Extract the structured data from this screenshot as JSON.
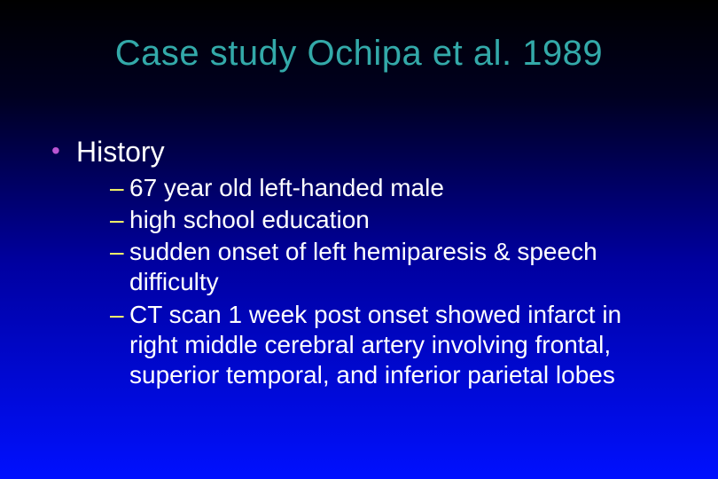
{
  "slide": {
    "title": "Case study Ochipa et al. 1989",
    "title_color": "#33a9a9",
    "title_fontsize": 40,
    "background_gradient": [
      "#000000",
      "#000020",
      "#0000a0",
      "#0010ff"
    ],
    "bullet_level1_color": "#ba55d3",
    "bullet_level2_color": "#ffff66",
    "body_text_color": "#ffffff",
    "level1_fontsize": 32,
    "level2_fontsize": 28,
    "font_family": "Arial",
    "items": [
      {
        "label": "History",
        "subitems": [
          "67 year old left-handed male",
          "high school education",
          "sudden onset of left hemiparesis & speech difficulty",
          "CT scan 1 week post onset showed infarct in right middle cerebral artery involving frontal, superior temporal, and inferior parietal lobes"
        ]
      }
    ]
  }
}
